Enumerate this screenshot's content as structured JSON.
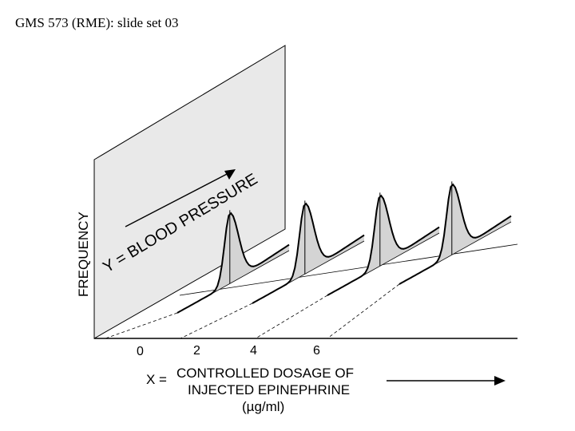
{
  "header": {
    "title": "GMS 573 (RME): slide set 03"
  },
  "figure": {
    "y_axis_label": "FREQUENCY",
    "plane_label": "Y = BLOOD PRESSURE",
    "x_ticks": [
      "0",
      "2",
      "4",
      "6"
    ],
    "x_axis_label_prefix": "X =",
    "x_axis_label_line1": "CONTROLLED DOSAGE OF",
    "x_axis_label_line2": "INJECTED EPINEPHRINE",
    "x_axis_units": "(µg/ml)",
    "distribution_count": 4,
    "colors": {
      "plane_fill": "#e9e9e9",
      "curve_fill": "#d4d4d4",
      "line": "#000000"
    }
  }
}
